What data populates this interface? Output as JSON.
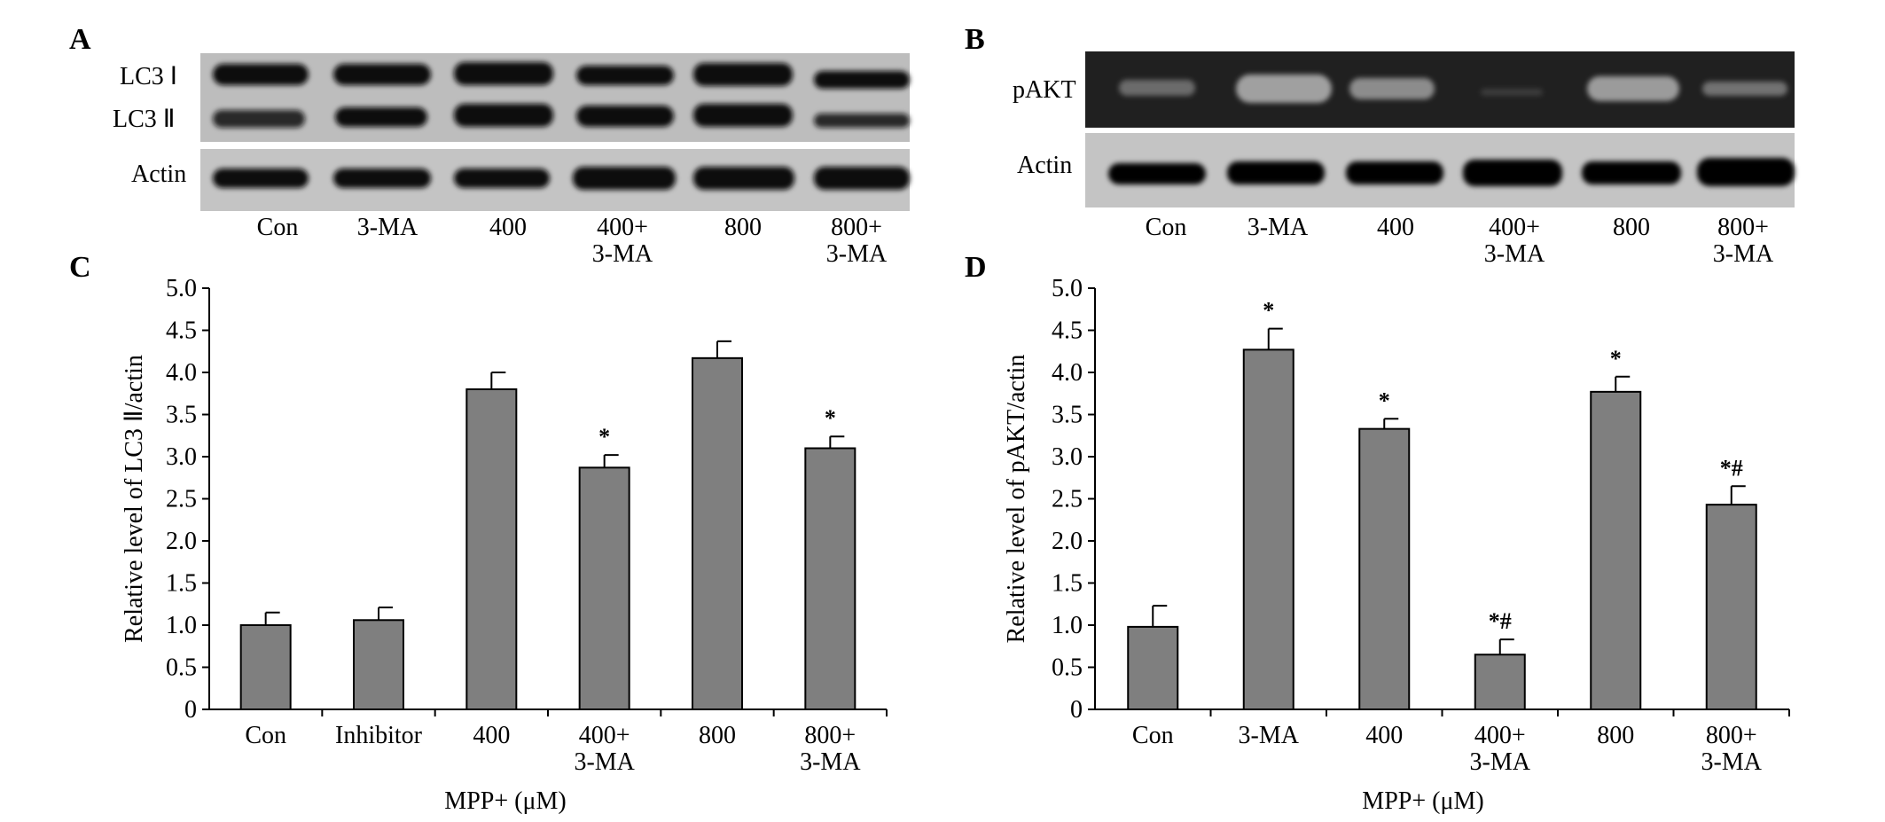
{
  "panels": {
    "A": {
      "letter": "A",
      "row_labels": [
        "LC3 Ⅰ",
        "LC3 Ⅱ",
        "Actin"
      ],
      "lanes": [
        "Con",
        "3-MA",
        "400",
        "400+\n3-MA",
        "800",
        "800+\n3-MA"
      ]
    },
    "B": {
      "letter": "B",
      "row_labels": [
        "pAKT",
        "Actin"
      ],
      "lanes": [
        "Con",
        "3-MA",
        "400",
        "400+\n3-MA",
        "800",
        "800+\n3-MA"
      ]
    },
    "C": {
      "letter": "C"
    },
    "D": {
      "letter": "D"
    }
  },
  "colors": {
    "bar": "#7f7f7f",
    "blot_bg": "#bdbdbd",
    "band": "#101010"
  },
  "chart_data": [
    {
      "panel": "C",
      "type": "bar",
      "categories": [
        "Con",
        "Inhibitor",
        "400",
        "400+\n3-MA",
        "800",
        "800+\n3-MA"
      ],
      "values": [
        1.0,
        1.06,
        3.8,
        2.87,
        4.17,
        3.1
      ],
      "errors": [
        0.15,
        0.15,
        0.2,
        0.15,
        0.2,
        0.14
      ],
      "annotations": [
        "",
        "",
        "",
        "*",
        "",
        "*"
      ],
      "ylabel": "Relative level of LC3 Ⅱ/actin",
      "xlabel": "MPP+ (μM)",
      "ylim": [
        0,
        5.0
      ],
      "yticks": [
        "0",
        "0.5",
        "1.0",
        "1.5",
        "2.0",
        "2.5",
        "3.0",
        "3.5",
        "4.0",
        "4.5",
        "5.0"
      ]
    },
    {
      "panel": "D",
      "type": "bar",
      "categories": [
        "Con",
        "3-MA",
        "400",
        "400+\n3-MA",
        "800",
        "800+\n3-MA"
      ],
      "values": [
        0.98,
        4.27,
        3.33,
        0.65,
        3.77,
        2.43
      ],
      "errors": [
        0.25,
        0.25,
        0.12,
        0.18,
        0.18,
        0.22
      ],
      "annotations": [
        "",
        "*",
        "*",
        "*#",
        "*",
        "*#"
      ],
      "ylabel": "Relative level of pAKT/actin",
      "xlabel": "MPP+ (μM)",
      "ylim": [
        0,
        5.0
      ],
      "yticks": [
        "0",
        "0.5",
        "1.0",
        "1.5",
        "2.0",
        "2.5",
        "3.0",
        "3.5",
        "4.0",
        "4.5",
        "5.0"
      ]
    }
  ]
}
